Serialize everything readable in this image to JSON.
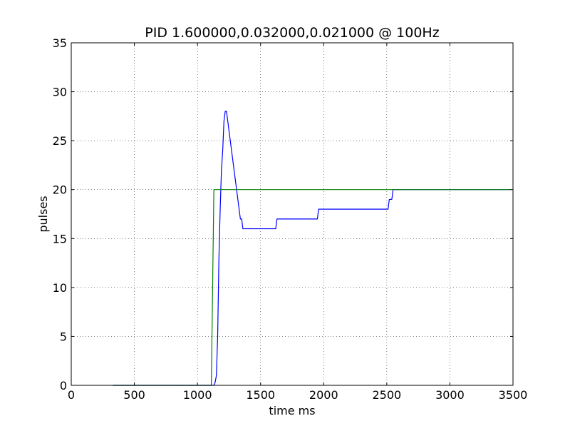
{
  "chart_data": {
    "type": "line",
    "title": "PID 1.600000,0.032000,0.021000 @ 100Hz",
    "xlabel": "time ms",
    "ylabel": "pulses",
    "xlim": [
      0,
      3500
    ],
    "ylim": [
      0,
      35
    ],
    "xticks": [
      0,
      500,
      1000,
      1500,
      2000,
      2500,
      3000,
      3500
    ],
    "yticks": [
      0,
      5,
      10,
      15,
      20,
      25,
      30,
      35
    ],
    "grid": true,
    "legend": "none",
    "series": [
      {
        "color": "#0000ff",
        "x": [
          330,
          1130,
          1140,
          1150,
          1160,
          1170,
          1180,
          1190,
          1200,
          1210,
          1220,
          1230,
          1240,
          1250,
          1260,
          1270,
          1280,
          1290,
          1300,
          1310,
          1320,
          1330,
          1340,
          1350,
          1360,
          1370,
          1380,
          1390,
          1620,
          1630,
          1950,
          1960,
          2500,
          2510,
          2520,
          2530,
          2540,
          2550,
          3480
        ],
        "y": [
          0,
          0,
          0.3,
          1,
          5,
          13,
          18,
          22,
          24,
          27,
          28,
          28,
          27,
          26,
          25,
          24,
          23,
          22,
          21,
          20,
          19,
          18,
          17,
          17,
          16,
          16,
          16,
          16,
          16,
          17,
          17,
          18,
          18,
          18,
          19,
          19,
          19,
          20,
          20
        ]
      },
      {
        "color": "#008000",
        "x": [
          330,
          1110,
          1120,
          1130,
          3480
        ],
        "y": [
          0,
          0,
          10,
          20,
          20
        ]
      }
    ]
  }
}
